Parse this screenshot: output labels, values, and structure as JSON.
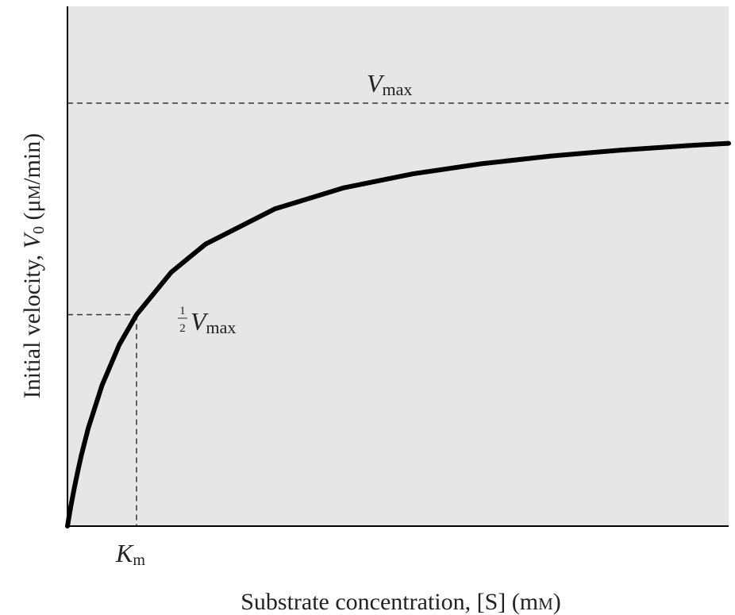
{
  "chart_data": {
    "type": "line",
    "x_label": [
      "Substrate concentration, [S] (m",
      "M",
      ")"
    ],
    "y_label": [
      "Initial velocity, ",
      "V",
      "0",
      " (μ",
      "M",
      "/min)"
    ],
    "vmax_label": [
      "V",
      "max"
    ],
    "half_vmax_label": [
      "1",
      "2",
      "V",
      "max"
    ],
    "km_label": [
      "K",
      "m"
    ],
    "vmax": 1,
    "km": 1,
    "xlim": [
      0,
      9.57
    ],
    "ylim": [
      0,
      1.229
    ],
    "color": "#000000",
    "x": [
      0,
      0.02,
      0.05,
      0.1,
      0.15,
      0.2,
      0.3,
      0.5,
      0.75,
      1,
      1.5,
      2,
      3,
      4,
      5,
      6,
      7,
      8,
      9,
      9.57
    ],
    "values": [
      0,
      0.02,
      0.048,
      0.091,
      0.13,
      0.167,
      0.231,
      0.333,
      0.429,
      0.5,
      0.6,
      0.667,
      0.75,
      0.8,
      0.833,
      0.857,
      0.875,
      0.889,
      0.9,
      0.905
    ]
  }
}
